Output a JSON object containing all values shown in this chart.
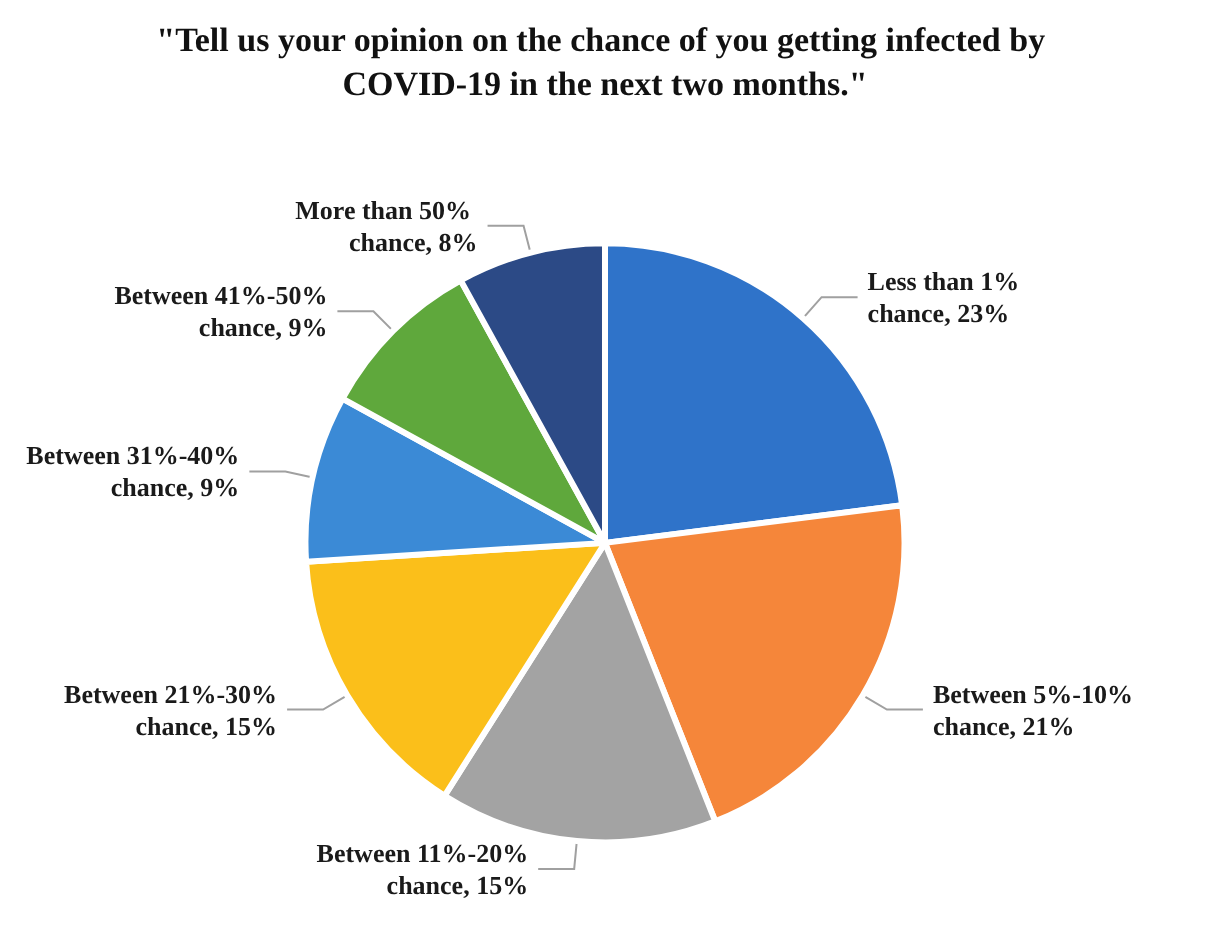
{
  "chart_data": {
    "type": "pie",
    "title": "\"Tell us your opinion on the chance of you getting infected by COVID-19 in the next two months.\"",
    "categories": [
      "Less than 1% chance",
      "Between 5%-10% chance",
      "Between 11%-20% chance",
      "Between 21%-30% chance",
      "Between 31%-40% chance",
      "Between 41%-50% chance",
      "More than 50% chance"
    ],
    "values": [
      23,
      21,
      15,
      15,
      9,
      9,
      8
    ],
    "value_labels": [
      "23%",
      "21%",
      "15%",
      "15%",
      "9%",
      "9%",
      "8%"
    ],
    "colors": [
      "#2f73c9",
      "#f5863a",
      "#a3a3a3",
      "#fbbf1a",
      "#3b8ad6",
      "#5fa83c",
      "#2c4a86"
    ],
    "legend": false
  }
}
